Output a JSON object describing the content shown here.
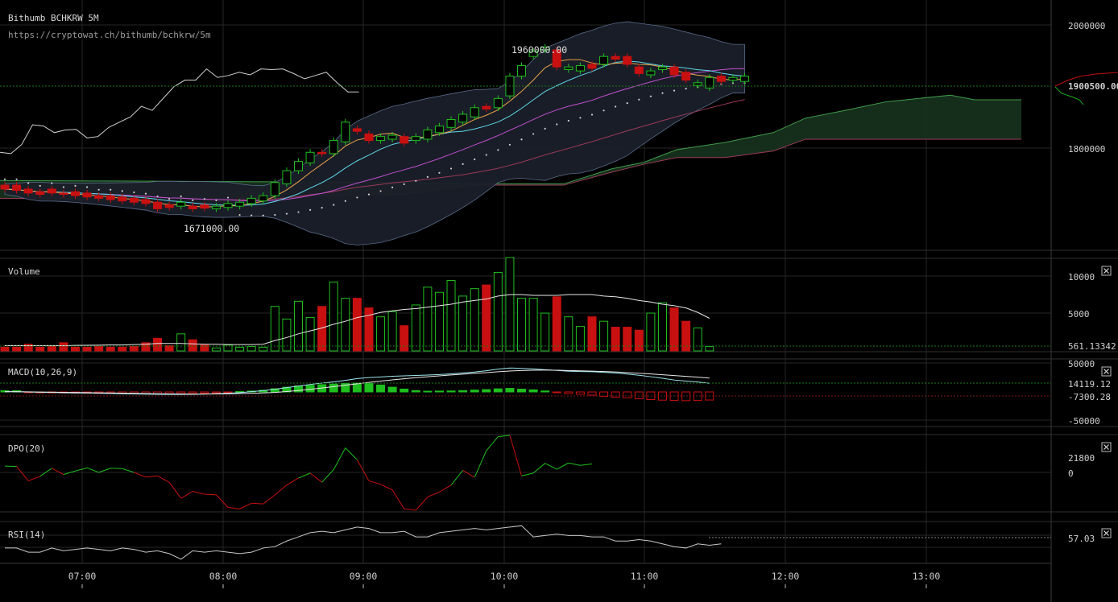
{
  "header": {
    "title": "Bithumb BCHKRW 5M",
    "url": "https://cryptowat.ch/bithumb/bchkrw/5m"
  },
  "colors": {
    "background": "#000000",
    "up": "#1fbf1f",
    "down": "#c81010",
    "grid": "#262626",
    "cloud": "#16301c",
    "bollinger": "#1a1f29",
    "sma_fast": "#e8a24a",
    "sma_mid": "#5fd8e8",
    "sma_slow": "#c050d0",
    "sma_long": "#9a3a5a",
    "comparison": "#d0d0d0"
  },
  "chart_data": {
    "type": "candlestick",
    "x_ticks": [
      "07:00",
      "08:00",
      "09:00",
      "10:00",
      "11:00",
      "12:00",
      "13:00"
    ],
    "price_axis": {
      "ticks": [
        "2000000",
        "1900500.00",
        "1800000"
      ],
      "current": "1900500.00",
      "range": [
        1640000,
        2020000
      ]
    },
    "annotations": {
      "high": "1960000.00",
      "low": "1671000.00"
    },
    "candles_open_close": [
      [
        1738000,
        1732000
      ],
      [
        1738000,
        1730000
      ],
      [
        1732000,
        1726000
      ],
      [
        1728000,
        1724000
      ],
      [
        1732000,
        1726000
      ],
      [
        1726000,
        1724000
      ],
      [
        1728000,
        1722000
      ],
      [
        1726000,
        1720000
      ],
      [
        1722000,
        1718000
      ],
      [
        1722000,
        1716000
      ],
      [
        1720000,
        1714000
      ],
      [
        1718000,
        1712000
      ],
      [
        1716000,
        1710000
      ],
      [
        1712000,
        1702000
      ],
      [
        1708000,
        1704000
      ],
      [
        1706000,
        1712000
      ],
      [
        1706000,
        1702000
      ],
      [
        1708000,
        1703000
      ],
      [
        1702000,
        1706000
      ],
      [
        1704000,
        1710000
      ],
      [
        1706000,
        1712000
      ],
      [
        1710000,
        1718000
      ],
      [
        1714000,
        1722000
      ],
      [
        1722000,
        1742000
      ],
      [
        1740000,
        1760000
      ],
      [
        1760000,
        1774000
      ],
      [
        1772000,
        1788000
      ],
      [
        1788000,
        1786000
      ],
      [
        1786000,
        1806000
      ],
      [
        1804000,
        1834000
      ],
      [
        1824000,
        1820000
      ],
      [
        1816000,
        1806000
      ],
      [
        1806000,
        1812000
      ],
      [
        1808000,
        1814000
      ],
      [
        1812000,
        1802000
      ],
      [
        1806000,
        1812000
      ],
      [
        1808000,
        1822000
      ],
      [
        1818000,
        1828000
      ],
      [
        1826000,
        1838000
      ],
      [
        1834000,
        1846000
      ],
      [
        1842000,
        1856000
      ],
      [
        1858000,
        1854000
      ],
      [
        1856000,
        1870000
      ],
      [
        1874000,
        1904000
      ],
      [
        1904000,
        1920000
      ],
      [
        1934000,
        1942000
      ],
      [
        1944000,
        1948000
      ],
      [
        1944000,
        1918000
      ],
      [
        1914000,
        1918000
      ],
      [
        1912000,
        1920000
      ],
      [
        1922000,
        1916000
      ],
      [
        1922000,
        1934000
      ],
      [
        1934000,
        1930000
      ],
      [
        1934000,
        1922000
      ],
      [
        1918000,
        1908000
      ],
      [
        1906000,
        1912000
      ],
      [
        1914000,
        1918000
      ],
      [
        1918000,
        1906000
      ],
      [
        1910000,
        1898000
      ],
      [
        1890000,
        1894000
      ],
      [
        1886000,
        1902000
      ],
      [
        1904000,
        1896000
      ],
      [
        1898000,
        1902000
      ],
      [
        1896000,
        1904000
      ]
    ],
    "comparison_line": [
      1788000,
      1786000,
      1800000,
      1830000,
      1828000,
      1818000,
      1822000,
      1823000,
      1810000,
      1812000,
      1826000,
      1834000,
      1842000,
      1858000,
      1852000,
      1870000,
      1888000,
      1898000,
      1898000,
      1915000,
      1902000,
      1905000,
      1910000,
      1906000,
      1915000,
      1914000,
      1915000,
      1908000,
      1900000,
      1905000,
      1910000,
      1894000,
      1880000,
      1880000
    ],
    "volume": {
      "label": "Volume",
      "ticks": [
        "10000",
        "5000",
        "561.13342"
      ],
      "range": [
        0,
        12600
      ],
      "values": [
        500,
        500,
        900,
        500,
        600,
        1100,
        500,
        500,
        600,
        500,
        500,
        600,
        1100,
        1700,
        700,
        2300,
        1500,
        800,
        400,
        800,
        500,
        600,
        500,
        6000,
        4300,
        6700,
        4500,
        6000,
        9300,
        7100,
        7100,
        5800,
        4600,
        5300,
        3400,
        6200,
        8600,
        7900,
        9500,
        7400,
        8400,
        8900,
        10600,
        12600,
        7100,
        7100,
        5100,
        7300,
        4600,
        3300,
        4600,
        4000,
        3200,
        3200,
        2800,
        5100,
        6500,
        5800,
        4000,
        3100,
        600
      ],
      "avg": [
        700,
        700,
        700,
        700,
        700,
        700,
        750,
        760,
        780,
        800,
        800,
        850,
        900,
        1000,
        1000,
        1000,
        950,
        900,
        900,
        850,
        850,
        850,
        900,
        1400,
        1800,
        2300,
        2700,
        3100,
        3600,
        4000,
        4500,
        4800,
        5200,
        5400,
        5600,
        5700,
        5900,
        6100,
        6300,
        6600,
        6800,
        7000,
        7400,
        7600,
        7600,
        7500,
        7500,
        7500,
        7600,
        7600,
        7600,
        7400,
        7300,
        7100,
        6800,
        6600,
        6300,
        6100,
        5800,
        5200,
        4400
      ]
    },
    "macd": {
      "label": "MACD(10,26,9)",
      "ticks": [
        "50000",
        "14119.12",
        "-7300.28",
        "-50000"
      ],
      "range": [
        -55000,
        55000
      ],
      "hist": [
        1200,
        1200,
        -700,
        -900,
        -900,
        -1000,
        -1100,
        -1100,
        -1300,
        -1500,
        -1500,
        -1600,
        -1700,
        -1900,
        -1600,
        -1500,
        -1400,
        -1100,
        -900,
        -600,
        300,
        800,
        1500,
        2900,
        4300,
        5400,
        6100,
        6600,
        7100,
        7700,
        8000,
        7700,
        6300,
        4300,
        2600,
        1200,
        700,
        800,
        900,
        1200,
        1700,
        2100,
        2800,
        3200,
        2500,
        1900,
        900,
        -400,
        -1500,
        -2100,
        -2900,
        -4100,
        -4700,
        -5300,
        -6200,
        -6900,
        -7400,
        -7600,
        -7900,
        -7700,
        -7300
      ],
      "line": [
        500,
        500,
        -100,
        -500,
        -900,
        -1300,
        -1600,
        -1800,
        -2200,
        -2500,
        -2900,
        -3300,
        -3600,
        -3900,
        -4100,
        -4100,
        -3900,
        -3400,
        -2800,
        -2100,
        -1100,
        500,
        2100,
        4400,
        7000,
        9700,
        12200,
        14400,
        16300,
        18900,
        21800,
        23400,
        24400,
        25500,
        26200,
        26900,
        27500,
        28300,
        29400,
        31000,
        32400,
        34500,
        37200,
        39000,
        38300,
        37500,
        36100,
        35100,
        33800,
        33200,
        32900,
        32000,
        30800,
        29100,
        27100,
        24800,
        22300,
        19400,
        17600,
        16200,
        14100
      ],
      "signal": [
        300,
        300,
        100,
        -100,
        -300,
        -600,
        -900,
        -1200,
        -1400,
        -1700,
        -2000,
        -2300,
        -2600,
        -2900,
        -3100,
        -3300,
        -3400,
        -3400,
        -3300,
        -3100,
        -2700,
        -2200,
        -1600,
        -800,
        600,
        2300,
        4300,
        6400,
        8600,
        10900,
        13300,
        15500,
        17700,
        19700,
        21500,
        23200,
        24700,
        26200,
        27600,
        29000,
        30300,
        31500,
        32900,
        34100,
        34900,
        35400,
        35500,
        35300,
        34900,
        34400,
        33900,
        33300,
        32500,
        31500,
        30400,
        29300,
        28000,
        26700,
        25300,
        24000,
        22600
      ]
    },
    "dpo": {
      "label": "DPO(20)",
      "ticks": [
        "21800",
        "0"
      ],
      "range": [
        -52000,
        56000
      ],
      "values": [
        11000,
        10500,
        -10000,
        -3500,
        8000,
        -1000,
        4000,
        8500,
        2000,
        8000,
        7500,
        2000,
        -4500,
        -3000,
        -12000,
        -35000,
        -25000,
        -29000,
        -30000,
        -48000,
        -50000,
        -42000,
        -43000,
        -30000,
        -16000,
        -6000,
        1000,
        -12000,
        6000,
        37000,
        20000,
        -10000,
        -15000,
        -23000,
        -50000,
        -52000,
        -33000,
        -26000,
        -16000,
        5000,
        -5000,
        33000,
        53000,
        55000,
        -3000,
        1000,
        15000,
        6500,
        15500,
        12000,
        14000
      ]
    },
    "rsi": {
      "label": "RSI(14)",
      "ticks": [
        "57.03"
      ],
      "range": [
        44,
        74
      ],
      "values": [
        55,
        55,
        52,
        52,
        55,
        53,
        54,
        55,
        54,
        53,
        55,
        54,
        52,
        53,
        51,
        47,
        53,
        52,
        53,
        52,
        51,
        52,
        55,
        56,
        60,
        63,
        66,
        67,
        66,
        68,
        70,
        69,
        66,
        66,
        67,
        63,
        63,
        66,
        67,
        68,
        69,
        68,
        69,
        70,
        71,
        63,
        64,
        65,
        64,
        64,
        63,
        63,
        60,
        60,
        61,
        60,
        58,
        56,
        55,
        58,
        57,
        58
      ]
    },
    "cloud": {
      "upper": [
        [
          0,
          1745000
        ],
        [
          200,
          1744000
        ],
        [
          500,
          1742000
        ],
        [
          590,
          1740000
        ],
        [
          700,
          1740000
        ],
        [
          760,
          1763000
        ],
        [
          800,
          1773000
        ],
        [
          840,
          1792000
        ],
        [
          900,
          1803000
        ],
        [
          960,
          1818000
        ],
        [
          1000,
          1840000
        ],
        [
          1050,
          1852000
        ],
        [
          1100,
          1865000
        ],
        [
          1180,
          1875000
        ],
        [
          1210,
          1868000
        ],
        [
          1268,
          1868000
        ]
      ],
      "lower": [
        [
          0,
          1718000
        ],
        [
          200,
          1716000
        ],
        [
          500,
          1724000
        ],
        [
          590,
          1738000
        ],
        [
          700,
          1738000
        ],
        [
          760,
          1758000
        ],
        [
          800,
          1770000
        ],
        [
          840,
          1780000
        ],
        [
          900,
          1780000
        ],
        [
          960,
          1790000
        ],
        [
          1000,
          1808000
        ],
        [
          1268,
          1808000
        ]
      ]
    }
  }
}
